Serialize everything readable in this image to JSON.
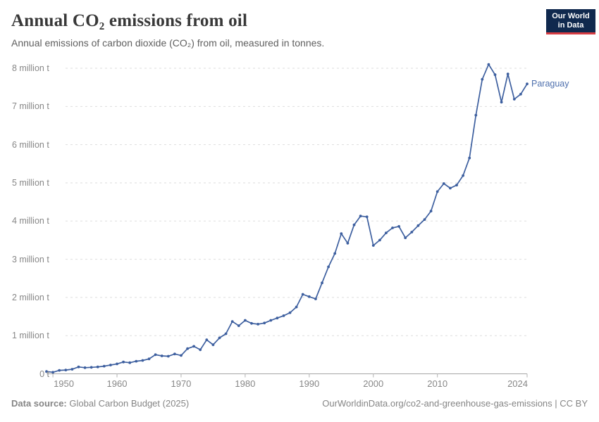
{
  "header": {
    "title": "Annual CO₂ emissions from oil",
    "subtitle": "Annual emissions of carbon dioxide (CO₂) from oil, measured in tonnes.",
    "logo": {
      "line1": "Our World",
      "line2": "in Data",
      "bg_color": "#10294e",
      "accent_color": "#d73d43",
      "text_color": "#ffffff"
    }
  },
  "chart_data": {
    "type": "line",
    "title": "Annual CO₂ emissions from oil",
    "entity": "Paraguay",
    "unit": "tonnes",
    "value_scale": "million tonnes",
    "line_color": "#3d5f9f",
    "entity_label_color": "#4d6fad",
    "grid": true,
    "markers": true,
    "legend_position": "end-of-line",
    "xlim": [
      1949,
      2024
    ],
    "ylim": [
      0,
      8
    ],
    "x": [
      1949,
      1950,
      1951,
      1952,
      1953,
      1954,
      1955,
      1956,
      1957,
      1958,
      1959,
      1960,
      1961,
      1962,
      1963,
      1964,
      1965,
      1966,
      1967,
      1968,
      1969,
      1970,
      1971,
      1972,
      1973,
      1974,
      1975,
      1976,
      1977,
      1978,
      1979,
      1980,
      1981,
      1982,
      1983,
      1984,
      1985,
      1986,
      1987,
      1988,
      1989,
      1990,
      1991,
      1992,
      1993,
      1994,
      1995,
      1996,
      1997,
      1998,
      1999,
      2000,
      2001,
      2002,
      2003,
      2004,
      2005,
      2006,
      2007,
      2008,
      2009,
      2010,
      2011,
      2012,
      2013,
      2014,
      2015,
      2016,
      2017,
      2018,
      2019,
      2020,
      2021,
      2022,
      2023,
      2024
    ],
    "values_million_t": [
      0.06,
      0.04,
      0.09,
      0.1,
      0.12,
      0.18,
      0.16,
      0.17,
      0.18,
      0.2,
      0.23,
      0.26,
      0.31,
      0.29,
      0.33,
      0.35,
      0.39,
      0.5,
      0.47,
      0.46,
      0.52,
      0.48,
      0.66,
      0.72,
      0.63,
      0.89,
      0.76,
      0.94,
      1.05,
      1.37,
      1.26,
      1.4,
      1.32,
      1.3,
      1.33,
      1.4,
      1.46,
      1.52,
      1.6,
      1.75,
      2.08,
      2.02,
      1.96,
      2.38,
      2.8,
      3.15,
      3.67,
      3.42,
      3.9,
      4.13,
      4.11,
      3.36,
      3.5,
      3.69,
      3.82,
      3.86,
      3.56,
      3.71,
      3.88,
      4.04,
      4.26,
      4.77,
      4.98,
      4.86,
      4.94,
      5.19,
      5.65,
      6.77,
      7.71,
      8.1,
      7.83,
      7.11,
      7.85,
      7.19,
      7.32,
      7.59
    ],
    "y_ticks": [
      {
        "value": 0,
        "label": "0 t"
      },
      {
        "value": 1,
        "label": "1 million t"
      },
      {
        "value": 2,
        "label": "2 million t"
      },
      {
        "value": 3,
        "label": "3 million t"
      },
      {
        "value": 4,
        "label": "4 million t"
      },
      {
        "value": 5,
        "label": "5 million t"
      },
      {
        "value": 6,
        "label": "6 million t"
      },
      {
        "value": 7,
        "label": "7 million t"
      },
      {
        "value": 8,
        "label": "8 million t"
      }
    ],
    "x_ticks": [
      {
        "value": 1950,
        "label": "1950"
      },
      {
        "value": 1960,
        "label": "1960"
      },
      {
        "value": 1970,
        "label": "1970"
      },
      {
        "value": 1980,
        "label": "1980"
      },
      {
        "value": 1990,
        "label": "1990"
      },
      {
        "value": 2000,
        "label": "2000"
      },
      {
        "value": 2010,
        "label": "2010"
      },
      {
        "value": 2024,
        "label": "2024"
      }
    ]
  },
  "footer": {
    "source_label": "Data source:",
    "source_text": "Global Carbon Budget (2025)",
    "credit_text": "OurWorldinData.org/co2-and-greenhouse-gas-emissions | CC BY"
  }
}
